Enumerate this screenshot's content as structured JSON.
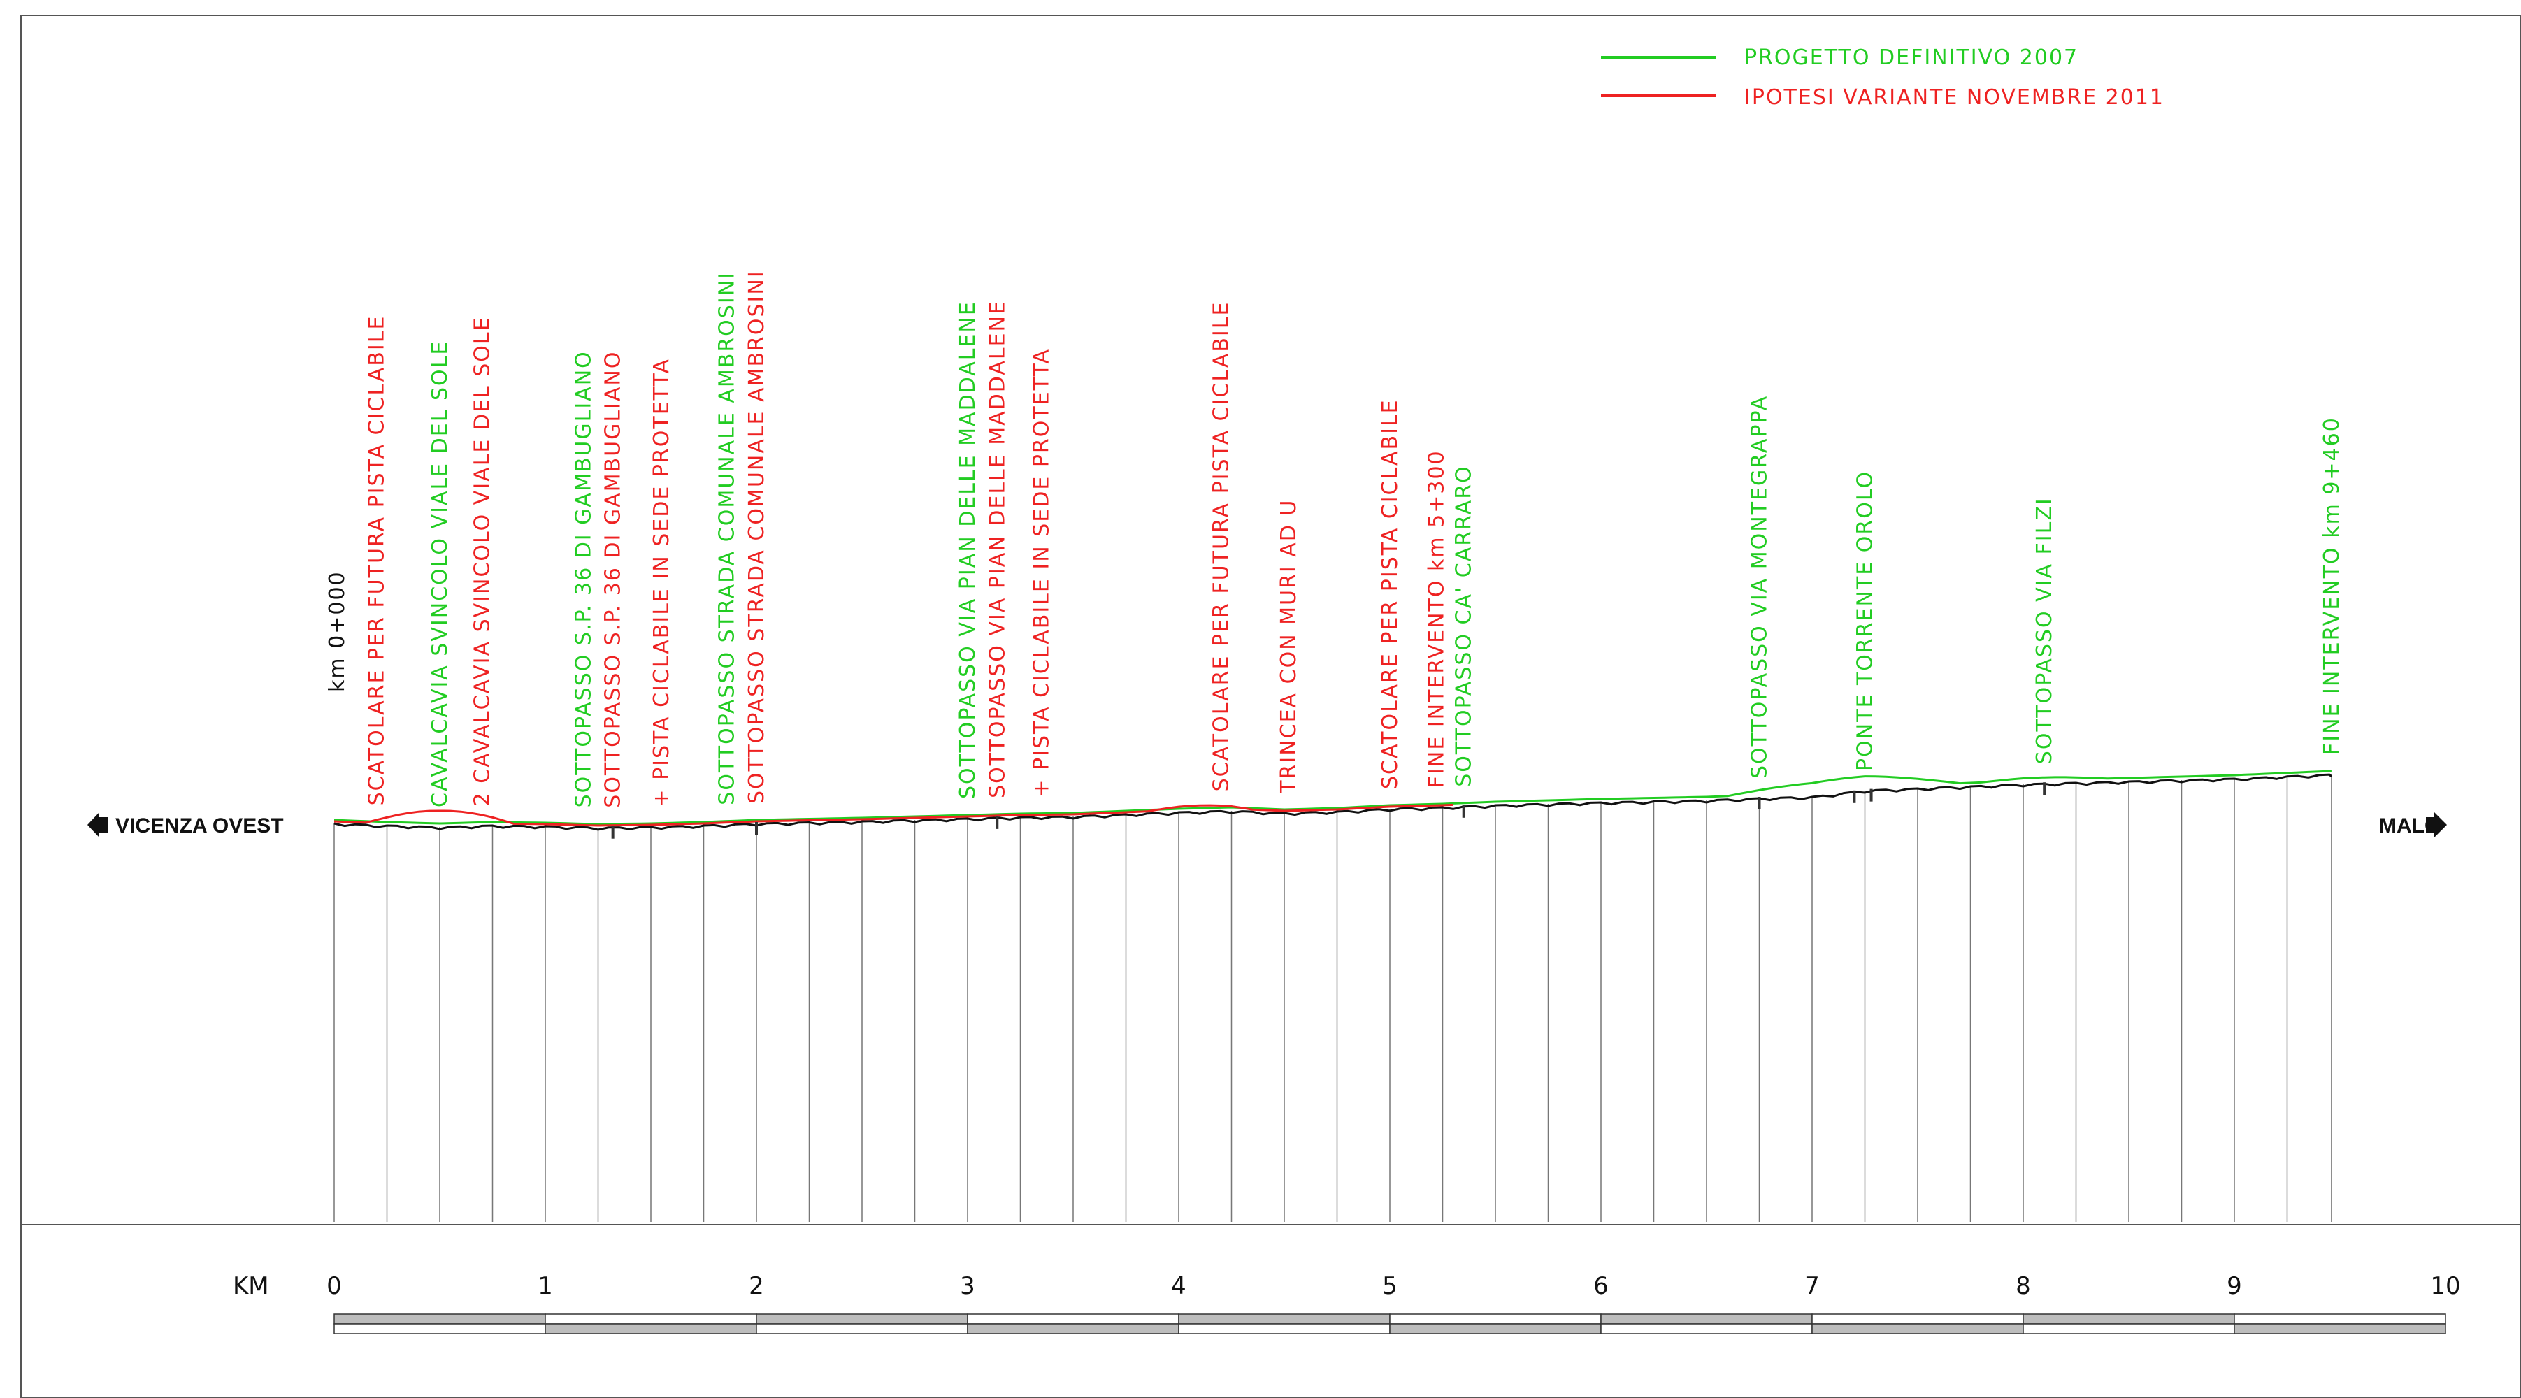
{
  "legend": [
    {
      "label": "PROGETTO DEFINITIVO 2007",
      "color": "#22cc22"
    },
    {
      "label": "IPOTESI VARIANTE NOVEMBRE 2011",
      "color": "#ee2222"
    }
  ],
  "start_marker": "km 0+000",
  "ends": {
    "left": "VICENZA OVEST",
    "right": "MALO"
  },
  "axis": {
    "unit_label": "KM",
    "ticks": [
      "0",
      "1",
      "2",
      "3",
      "4",
      "5",
      "6",
      "7",
      "8",
      "9",
      "10"
    ]
  },
  "annotations": [
    {
      "text": "SCATOLARE PER FUTURA PISTA CICLABILE",
      "color": "red",
      "km": 0.2
    },
    {
      "text": "CAVALCAVIA SVINCOLO VIALE DEL SOLE",
      "color": "green",
      "km": 0.5
    },
    {
      "text": "2 CAVALCAVIA SVINCOLO VIALE DEL SOLE",
      "color": "red",
      "km": 0.7
    },
    {
      "text": "SOTTOPASSO S.P. 36 DI GAMBUGLIANO",
      "color": "green",
      "km": 1.18
    },
    {
      "text": "SOTTOPASSO S.P. 36 DI GAMBUGLIANO",
      "color": "red",
      "km": 1.32
    },
    {
      "text": "+ PISTA CICLABILE IN SEDE PROTETTA",
      "color": "red",
      "km": 1.55
    },
    {
      "text": "SOTTOPASSO STRADA COMUNALE AMBROSINI",
      "color": "green",
      "km": 1.86
    },
    {
      "text": "SOTTOPASSO STRADA COMUNALE AMBROSINI",
      "color": "red",
      "km": 2.0
    },
    {
      "text": "SOTTOPASSO VIA PIAN DELLE MADDALENE",
      "color": "green",
      "km": 3.0
    },
    {
      "text": "SOTTOPASSO VIA PIAN DELLE MADDALENE",
      "color": "red",
      "km": 3.14
    },
    {
      "text": "+ PISTA CICLABILE IN SEDE PROTETTA",
      "color": "red",
      "km": 3.35
    },
    {
      "text": "SCATOLARE PER FUTURA PISTA CICLABILE",
      "color": "red",
      "km": 4.2
    },
    {
      "text": "TRINCEA CON MURI AD U",
      "color": "red",
      "km": 4.52
    },
    {
      "text": "SCATOLARE PER PISTA CICLABILE",
      "color": "red",
      "km": 5.0
    },
    {
      "text": "FINE INTERVENTO km 5+300",
      "color": "red",
      "km": 5.22
    },
    {
      "text": "SOTTOPASSO CA' CARRARO",
      "color": "green",
      "km": 5.35
    },
    {
      "text": "SOTTOPASSO VIA MONTEGRAPPA",
      "color": "green",
      "km": 6.75
    },
    {
      "text": "PONTE TORRENTE OROLO",
      "color": "green",
      "km": 7.25
    },
    {
      "text": "SOTTOPASSO VIA FILZI",
      "color": "green",
      "km": 8.1
    },
    {
      "text": "FINE INTERVENTO km 9+460",
      "color": "green",
      "km": 9.46
    }
  ]
}
